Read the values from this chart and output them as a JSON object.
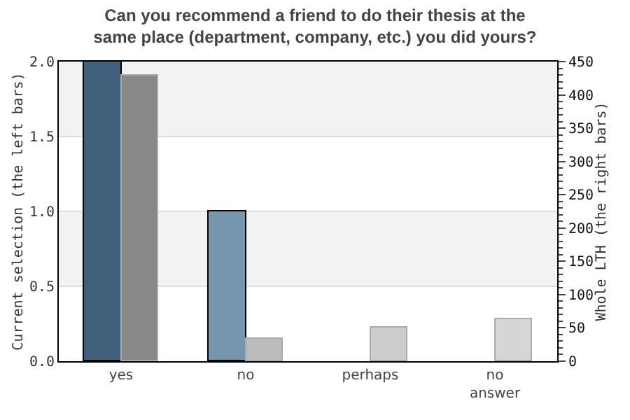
{
  "chart_data": {
    "type": "bar",
    "title": "Can you recommend a friend to do their thesis at the\nsame place (department, company, etc.) you did yours?",
    "ylabel": "Current selection (the left bars)",
    "y2label": "Whole LTH (the right bars)",
    "categories": [
      "yes",
      "no",
      "perhaps",
      "no\nanswer"
    ],
    "series": [
      {
        "colors": [
          "#3f5f7a",
          "#7696b0",
          "#7696b0",
          "#7696b0"
        ],
        "values": [
          2,
          1,
          0,
          0
        ]
      },
      {
        "colors": [
          "#888888",
          "#bbbbbb",
          "#cccccc",
          "#d6d6d6"
        ],
        "values": [
          429,
          33,
          50,
          63
        ],
        "axis": "y2"
      }
    ],
    "ylim": [
      0,
      2
    ],
    "yticks": [
      {
        "value": 0,
        "label": "0.0"
      },
      {
        "value": 0.5,
        "label": "0.5"
      },
      {
        "value": 1,
        "label": "1.0"
      },
      {
        "value": 1.5,
        "label": "1.5"
      },
      {
        "value": 2,
        "label": "2.0"
      }
    ],
    "y2lim": [
      0,
      450
    ],
    "y2ticks": [
      0,
      50,
      100,
      150,
      200,
      250,
      300,
      350,
      400,
      450
    ],
    "bands": [
      {
        "axis": "y",
        "from": 0.5,
        "to": 1.0,
        "color": "#f2f2f2"
      },
      {
        "axis": "y",
        "from": 1.5,
        "to": 2.0,
        "color": "#f2f2f2"
      }
    ],
    "grid": "y"
  }
}
